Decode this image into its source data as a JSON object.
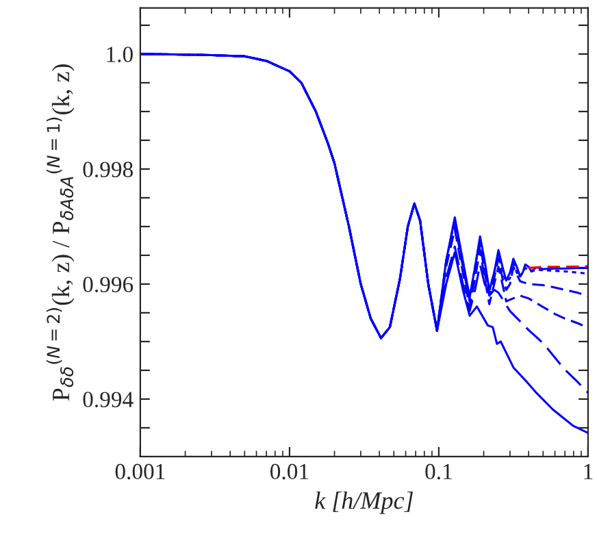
{
  "chart_data": {
    "type": "line",
    "xlabel": "k [h/Mpc]",
    "ylabel": "P$_{δδ}$$^{(N=2)}$(k, z) / P$_{δ̄Aδ̄A}$$^{(N=1)}$(k, z)",
    "log": "x",
    "xlim": [
      0.001,
      1
    ],
    "xticks": [
      {
        "value": 0.001,
        "label": "0.001"
      },
      {
        "value": 0.01,
        "label": "0.01"
      },
      {
        "value": 0.1,
        "label": "0.1"
      },
      {
        "value": 1,
        "label": "1"
      }
    ],
    "ylim": [
      0.993,
      1.0008
    ],
    "yticks": [
      {
        "value": 0.9935,
        "label": null
      },
      {
        "value": 0.994,
        "label": "0.994"
      },
      {
        "value": 0.9945,
        "label": null
      },
      {
        "value": 0.995,
        "label": null
      },
      {
        "value": 0.9955,
        "label": null
      },
      {
        "value": 0.996,
        "label": "0.996"
      },
      {
        "value": 0.9965,
        "label": null
      },
      {
        "value": 0.997,
        "label": null
      },
      {
        "value": 0.9975,
        "label": null
      },
      {
        "value": 0.998,
        "label": "0.998"
      },
      {
        "value": 0.9985,
        "label": null
      },
      {
        "value": 0.999,
        "label": null
      },
      {
        "value": 0.9995,
        "label": null
      },
      {
        "value": 1.0,
        "label": "1.0"
      },
      {
        "value": 1.0005,
        "label": null
      }
    ],
    "grid": false,
    "legend": false,
    "marker": "none",
    "series": [
      {
        "color": "#0000ff",
        "line_style": "solid",
        "x": [
          0.001,
          0.002,
          0.003,
          0.005,
          0.007,
          0.01,
          0.012,
          0.015,
          0.018,
          0.02,
          0.025,
          0.03,
          0.035,
          0.041,
          0.047,
          0.055,
          0.062,
          0.0686,
          0.075,
          0.085,
          0.0973,
          0.112,
          0.128,
          0.145,
          0.161,
          0.175,
          0.189,
          0.203,
          0.218,
          0.235,
          0.251,
          0.267,
          0.283,
          0.3,
          0.316,
          0.333,
          0.35,
          0.365,
          0.38,
          0.4,
          0.417,
          0.435,
          0.454,
          0.5,
          0.6,
          0.7,
          0.85,
          1
        ],
        "values": [
          1.0,
          0.99999,
          0.99998,
          0.99996,
          0.99988,
          0.9997,
          0.9995,
          0.999,
          0.99846,
          0.9981,
          0.997,
          0.996,
          0.9954,
          0.99506,
          0.99525,
          0.9961,
          0.997,
          0.9974,
          0.9971,
          0.996,
          0.99519,
          0.9964,
          0.99716,
          0.9964,
          0.99577,
          0.9963,
          0.99683,
          0.9964,
          0.99589,
          0.9962,
          0.99659,
          0.9963,
          0.99606,
          0.9962,
          0.99644,
          0.9963,
          0.99614,
          0.9962,
          0.99634,
          0.9963,
          0.99622,
          0.99626,
          0.99629,
          0.99626,
          0.99627,
          0.99627,
          0.99628,
          0.99628
        ]
      },
      {
        "color": "#0000ff",
        "line_style": "dotted",
        "x": [
          0.001,
          0.002,
          0.003,
          0.005,
          0.007,
          0.01,
          0.012,
          0.015,
          0.018,
          0.02,
          0.025,
          0.03,
          0.035,
          0.041,
          0.047,
          0.055,
          0.062,
          0.0686,
          0.075,
          0.085,
          0.0973,
          0.112,
          0.128,
          0.145,
          0.161,
          0.175,
          0.189,
          0.203,
          0.218,
          0.235,
          0.251,
          0.267,
          0.283,
          0.3,
          0.316,
          0.333,
          0.35,
          0.38,
          0.417,
          0.454,
          0.5,
          0.6,
          0.7,
          0.85,
          1
        ],
        "values": [
          1.0,
          0.99999,
          0.99998,
          0.99996,
          0.99988,
          0.9997,
          0.9995,
          0.999,
          0.99846,
          0.9981,
          0.997,
          0.996,
          0.9954,
          0.99506,
          0.99525,
          0.9961,
          0.997,
          0.9974,
          0.9971,
          0.996,
          0.99519,
          0.9964,
          0.99712,
          0.9964,
          0.99576,
          0.9963,
          0.99678,
          0.9963,
          0.99588,
          0.9962,
          0.99652,
          0.9962,
          0.99605,
          0.9961,
          0.99636,
          0.9962,
          0.99612,
          0.99628,
          0.99622,
          0.99625,
          0.99624,
          0.99623,
          0.99622,
          0.9962,
          0.99618
        ]
      },
      {
        "color": "#0000ff",
        "line_style": "dashed",
        "x": [
          0.001,
          0.002,
          0.003,
          0.005,
          0.007,
          0.01,
          0.012,
          0.015,
          0.018,
          0.02,
          0.025,
          0.03,
          0.035,
          0.041,
          0.047,
          0.055,
          0.062,
          0.0686,
          0.075,
          0.085,
          0.0973,
          0.112,
          0.128,
          0.145,
          0.161,
          0.175,
          0.189,
          0.203,
          0.218,
          0.235,
          0.251,
          0.267,
          0.283,
          0.3,
          0.316,
          0.35,
          0.4,
          0.5,
          0.6,
          0.7,
          0.85,
          1
        ],
        "values": [
          1.0,
          0.99999,
          0.99998,
          0.99996,
          0.99988,
          0.9997,
          0.9995,
          0.999,
          0.99846,
          0.9981,
          0.997,
          0.996,
          0.9954,
          0.99506,
          0.99525,
          0.9961,
          0.997,
          0.9974,
          0.9971,
          0.996,
          0.99519,
          0.9964,
          0.99705,
          0.9963,
          0.9957,
          0.9962,
          0.9967,
          0.9962,
          0.9958,
          0.9961,
          0.99645,
          0.9961,
          0.9959,
          0.996,
          0.9963,
          0.99605,
          0.996,
          0.99598,
          0.99594,
          0.9959,
          0.99585,
          0.99579
        ]
      },
      {
        "color": "#0000ff",
        "line_style": "dashed",
        "x": [
          0.001,
          0.002,
          0.003,
          0.005,
          0.007,
          0.01,
          0.012,
          0.015,
          0.018,
          0.02,
          0.025,
          0.03,
          0.035,
          0.041,
          0.047,
          0.055,
          0.062,
          0.0686,
          0.075,
          0.085,
          0.0973,
          0.112,
          0.128,
          0.145,
          0.161,
          0.175,
          0.189,
          0.203,
          0.218,
          0.235,
          0.251,
          0.267,
          0.283,
          0.35,
          0.4,
          0.5,
          0.6,
          0.7,
          0.85,
          1
        ],
        "values": [
          1.0,
          0.99999,
          0.99998,
          0.99996,
          0.99988,
          0.9997,
          0.9995,
          0.999,
          0.99846,
          0.9981,
          0.997,
          0.996,
          0.9954,
          0.99506,
          0.99525,
          0.9961,
          0.997,
          0.9974,
          0.9971,
          0.996,
          0.99519,
          0.9963,
          0.99695,
          0.9962,
          0.9956,
          0.9961,
          0.9966,
          0.9961,
          0.99565,
          0.996,
          0.9963,
          0.996,
          0.9957,
          0.9958,
          0.99575,
          0.9956,
          0.99548,
          0.9954,
          0.99532,
          0.99524
        ]
      },
      {
        "color": "#0000ff",
        "line_style": "dashdot",
        "x": [
          0.001,
          0.002,
          0.003,
          0.005,
          0.007,
          0.01,
          0.012,
          0.015,
          0.018,
          0.02,
          0.025,
          0.03,
          0.035,
          0.041,
          0.047,
          0.055,
          0.062,
          0.0686,
          0.075,
          0.085,
          0.0973,
          0.112,
          0.128,
          0.145,
          0.161,
          0.175,
          0.189,
          0.203,
          0.22,
          0.235,
          0.251,
          0.3,
          0.4,
          0.5,
          0.7,
          0.85,
          1
        ],
        "values": [
          1.0,
          0.99999,
          0.99998,
          0.99996,
          0.99988,
          0.9997,
          0.9995,
          0.999,
          0.99846,
          0.9981,
          0.997,
          0.996,
          0.9954,
          0.99506,
          0.99525,
          0.9961,
          0.997,
          0.9974,
          0.9971,
          0.996,
          0.99519,
          0.9961,
          0.99665,
          0.996,
          0.99553,
          0.9959,
          0.99634,
          0.996,
          0.99581,
          0.9959,
          0.99585,
          0.99553,
          0.9952,
          0.99497,
          0.99451,
          0.9943,
          0.99411
        ]
      },
      {
        "color": "#0000ff",
        "line_style": "solid",
        "x": [
          0.001,
          0.002,
          0.003,
          0.005,
          0.007,
          0.01,
          0.012,
          0.015,
          0.018,
          0.02,
          0.025,
          0.03,
          0.035,
          0.041,
          0.047,
          0.055,
          0.062,
          0.0686,
          0.075,
          0.085,
          0.0973,
          0.112,
          0.128,
          0.145,
          0.161,
          0.18,
          0.213,
          0.23,
          0.245,
          0.26,
          0.316,
          0.385,
          0.45,
          0.58,
          0.79,
          1
        ],
        "values": [
          1.0,
          0.99999,
          0.99998,
          0.99996,
          0.99988,
          0.9997,
          0.9995,
          0.999,
          0.99846,
          0.9981,
          0.997,
          0.996,
          0.9954,
          0.99506,
          0.99525,
          0.9961,
          0.997,
          0.9974,
          0.9971,
          0.996,
          0.99519,
          0.996,
          0.99655,
          0.9959,
          0.99545,
          0.99561,
          0.99528,
          0.99525,
          0.99496,
          0.995,
          0.99455,
          0.99431,
          0.99411,
          0.99382,
          0.99354,
          0.99341
        ]
      },
      {
        "color": "#ff0000",
        "line_style": "dashed",
        "x": [
          0.4,
          0.5,
          0.7,
          1
        ],
        "values": [
          0.99628,
          0.9963,
          0.9963,
          0.99631
        ]
      }
    ]
  }
}
